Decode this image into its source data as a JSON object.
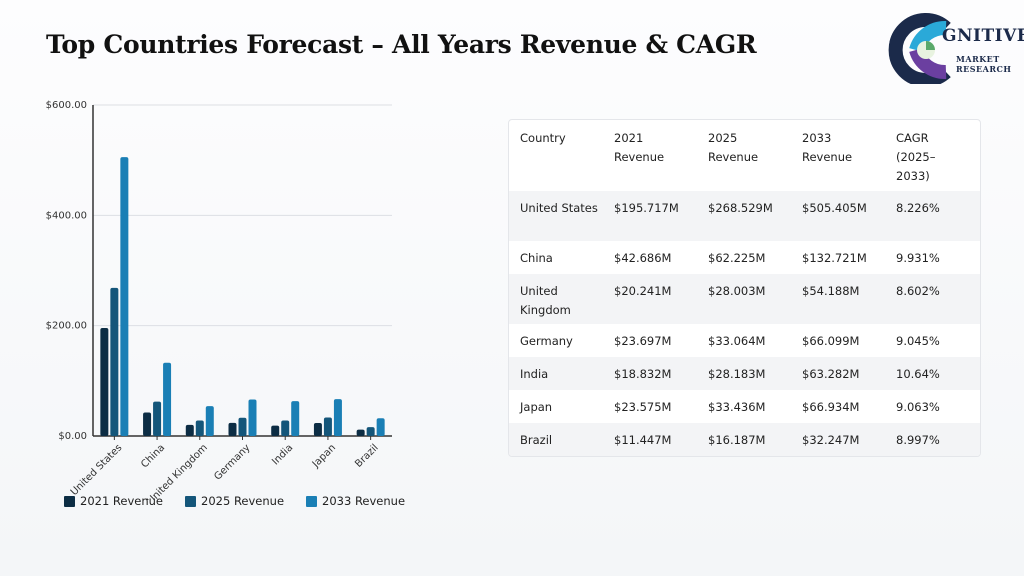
{
  "header": {
    "title": "Top Countries Forecast – All Years Revenue & CAGR"
  },
  "logo": {
    "name": "GNITIVE",
    "line1": "MARKET",
    "line2": "RESEARCH"
  },
  "chart_data": {
    "type": "bar",
    "categories": [
      "United States",
      "China",
      "United Kingdom",
      "Germany",
      "India",
      "Japan",
      "Brazil"
    ],
    "series": [
      {
        "name": "2021 Revenue",
        "color": "#0c2d44",
        "values": [
          195.717,
          42.686,
          20.241,
          23.697,
          18.832,
          23.575,
          11.447
        ]
      },
      {
        "name": "2025 Revenue",
        "color": "#14567a",
        "values": [
          268.529,
          62.225,
          28.003,
          33.064,
          28.183,
          33.436,
          16.187
        ]
      },
      {
        "name": "2033 Revenue",
        "color": "#1a7fb5",
        "values": [
          505.405,
          132.721,
          54.188,
          66.099,
          63.282,
          66.934,
          32.247
        ]
      }
    ],
    "yticks": [
      "$0.00",
      "$200.00",
      "$400.00",
      "$600.00"
    ],
    "ylim": [
      0,
      600
    ],
    "grid": true,
    "legend_position": "bottom"
  },
  "table": {
    "headers": [
      "Country",
      "2021 Revenue",
      "2025 Revenue",
      "2033 Revenue",
      "CAGR (2025–2033)"
    ],
    "rows": [
      [
        "United States",
        "$195.717M",
        "$268.529M",
        "$505.405M",
        "8.226%"
      ],
      [
        "China",
        "$42.686M",
        "$62.225M",
        "$132.721M",
        "9.931%"
      ],
      [
        "United Kingdom",
        "$20.241M",
        "$28.003M",
        "$54.188M",
        "8.602%"
      ],
      [
        "Germany",
        "$23.697M",
        "$33.064M",
        "$66.099M",
        "9.045%"
      ],
      [
        "India",
        "$18.832M",
        "$28.183M",
        "$63.282M",
        "10.64%"
      ],
      [
        "Japan",
        "$23.575M",
        "$33.436M",
        "$66.934M",
        "9.063%"
      ],
      [
        "Brazil",
        "$11.447M",
        "$16.187M",
        "$32.247M",
        "8.997%"
      ]
    ]
  }
}
